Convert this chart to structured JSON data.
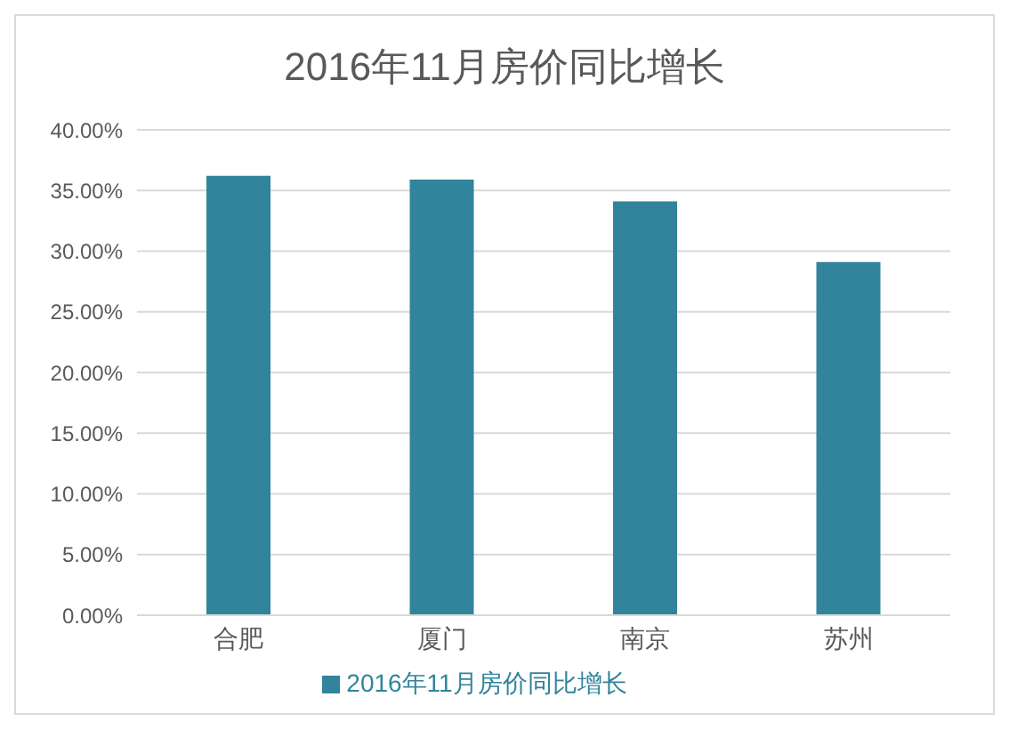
{
  "chart_data": {
    "type": "bar",
    "title": "2016年11月房价同比增长",
    "categories": [
      "合肥",
      "厦门",
      "南京",
      "苏州"
    ],
    "series": [
      {
        "name": "2016年11月房价同比增长",
        "color": "#31849b",
        "values": [
          36.2,
          35.9,
          34.1,
          29.1
        ]
      }
    ],
    "ylim": [
      0,
      40
    ],
    "yticks": [
      {
        "value": 0,
        "label": "0.00%"
      },
      {
        "value": 5,
        "label": "5.00%"
      },
      {
        "value": 10,
        "label": "10.00%"
      },
      {
        "value": 15,
        "label": "15.00%"
      },
      {
        "value": 20,
        "label": "20.00%"
      },
      {
        "value": 25,
        "label": "25.00%"
      },
      {
        "value": 30,
        "label": "30.00%"
      },
      {
        "value": 35,
        "label": "35.00%"
      },
      {
        "value": 40,
        "label": "40.00%"
      }
    ],
    "grid": "y",
    "legend": "bottom"
  }
}
